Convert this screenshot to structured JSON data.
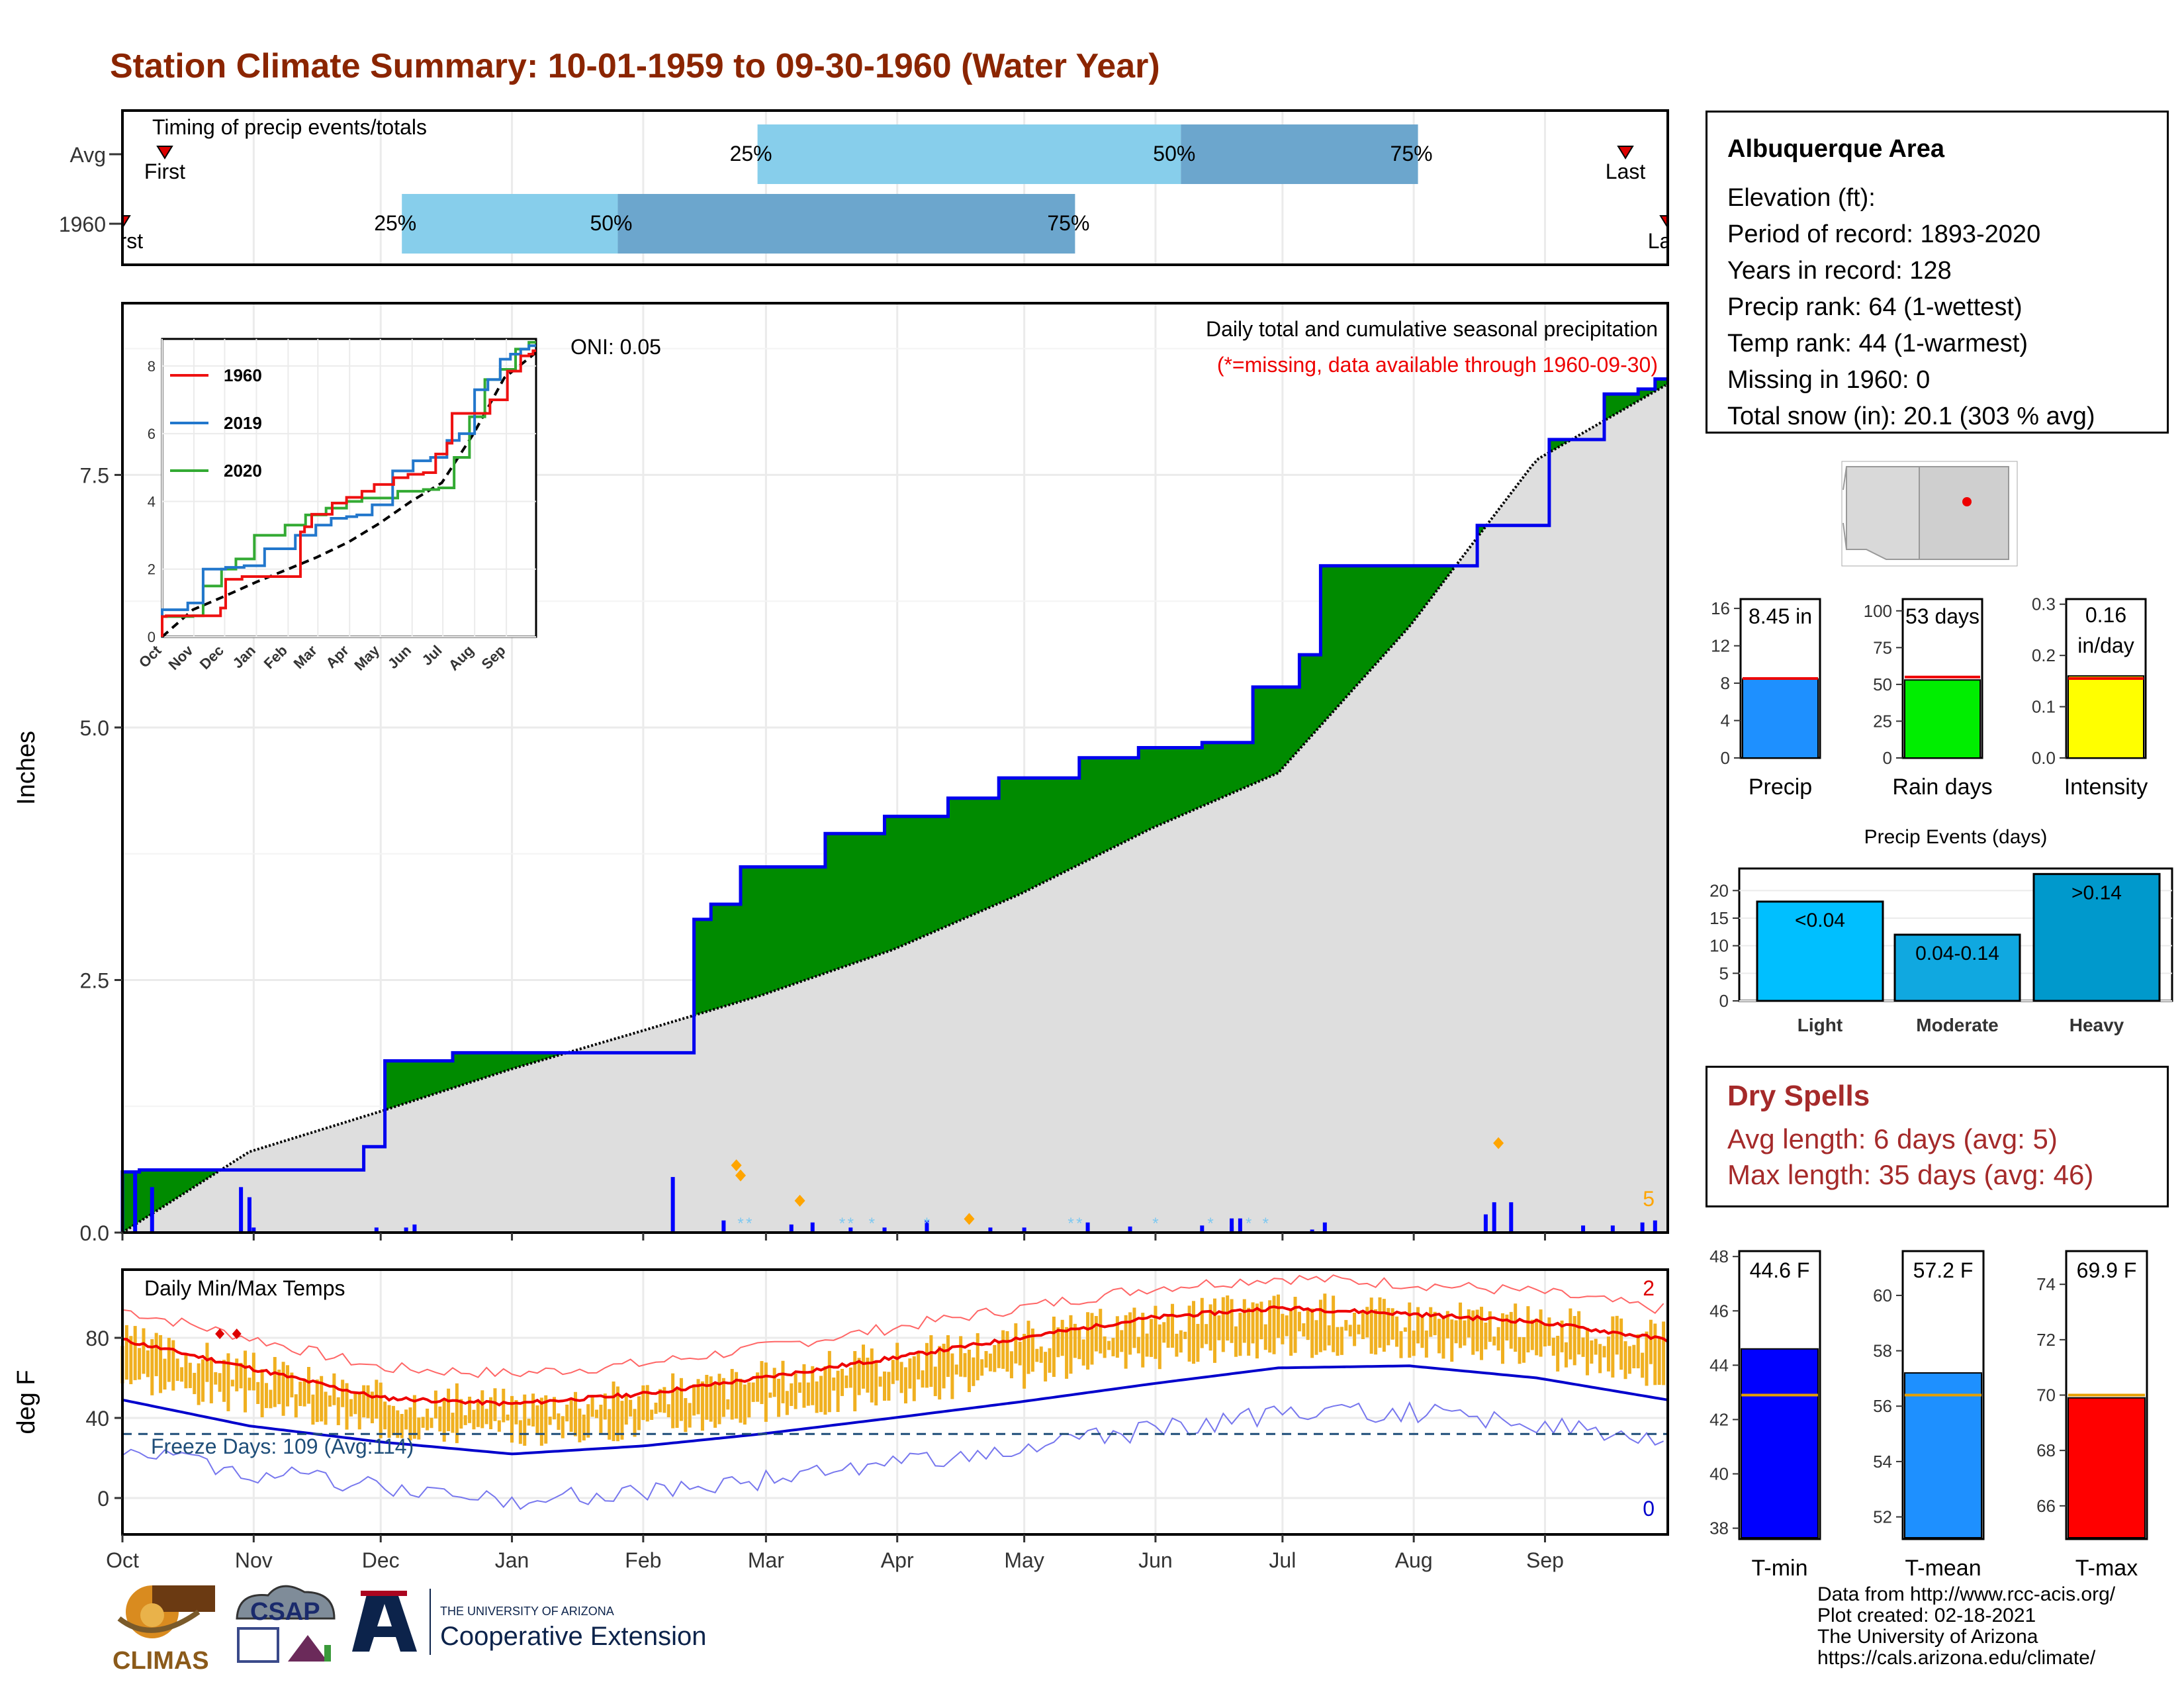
{
  "title": "Station Climate Summary: 10-01-1959 to 09-30-1960 (Water Year)",
  "timing": {
    "label": "Timing of precip events/totals",
    "rows": [
      {
        "name": "Avg",
        "first_day": 10,
        "q25": 150,
        "q50": 250,
        "q75": 306,
        "last_day": 355,
        "first_label": "First",
        "last_label": "Last"
      },
      {
        "name": "1960",
        "first_day": 0,
        "q25": 66,
        "q50": 117,
        "q75": 225,
        "last_day": 365,
        "first_label": "First",
        "last_label": "Last"
      }
    ],
    "pct_labels": [
      "25%",
      "50%",
      "75%"
    ]
  },
  "precip_panel": {
    "ylabel": "Inches",
    "yticks": [
      "0.0",
      "2.5",
      "5.0",
      "7.5"
    ],
    "ylim": [
      0,
      9.2
    ],
    "oni": "ONI: 0.05",
    "caption": "Daily total and cumulative seasonal precipitation",
    "missing_note": "(*=missing, data available through 1960-09-30)",
    "missing_count": "5"
  },
  "temp_panel": {
    "label": "Daily Min/Max Temps",
    "ylabel": "deg F",
    "yticks": [
      "0",
      "40",
      "80"
    ],
    "freeze": "Freeze Days: 109 (Avg:114)",
    "count_high": "2",
    "count_low": "0"
  },
  "months": [
    "Oct",
    "Nov",
    "Dec",
    "Jan",
    "Feb",
    "Mar",
    "Apr",
    "May",
    "Jun",
    "Jul",
    "Aug",
    "Sep"
  ],
  "inset": {
    "yticks": [
      "0",
      "2",
      "4",
      "6",
      "8"
    ],
    "months": [
      "Oct",
      "Nov",
      "Dec",
      "Jan",
      "Feb",
      "Mar",
      "Apr",
      "May",
      "Jun",
      "Jul",
      "Aug",
      "Sep"
    ],
    "legend": [
      "1960",
      "2019",
      "2020"
    ],
    "colors": [
      "#EE1111",
      "#2277CC",
      "#33AA33"
    ]
  },
  "info": {
    "name": "Albuquerque Area",
    "lines": [
      "Elevation (ft):",
      "Period of record: 1893-2020",
      "Years in record: 128",
      "Precip rank: 64 (1-wettest)",
      "Temp rank: 44 (1-warmest)",
      "Missing in 1960: 0",
      "Total snow (in): 20.1 (303 % avg)"
    ]
  },
  "summary_bars": [
    {
      "label": "Precip",
      "value_label": "8.45 in",
      "value": 8.45,
      "avg": 8.5,
      "ymax": 17,
      "ticks": [
        "0",
        "4",
        "8",
        "12",
        "16"
      ],
      "tickvals": [
        0,
        4,
        8,
        12,
        16
      ],
      "color": "#1E90FF"
    },
    {
      "label": "Rain days",
      "value_label": "53 days",
      "value": 53,
      "avg": 55,
      "ymax": 108,
      "ticks": [
        "0",
        "25",
        "50",
        "75",
        "100"
      ],
      "tickvals": [
        0,
        25,
        50,
        75,
        100
      ],
      "color": "#00EE00"
    },
    {
      "label": "Intensity",
      "value_label": "0.16 in/day",
      "value": 0.16,
      "avg": 0.155,
      "ymax": 0.31,
      "ticks": [
        "0.0",
        "0.1",
        "0.2",
        "0.3"
      ],
      "tickvals": [
        0,
        0.1,
        0.2,
        0.3
      ],
      "color": "#FFFF00"
    }
  ],
  "events": {
    "title": "Precip Events (days)",
    "categories": [
      "Light",
      "Moderate",
      "Heavy"
    ],
    "values": [
      18,
      12,
      23
    ],
    "labels": [
      "<0.04",
      "0.04-0.14",
      ">0.14"
    ],
    "colors": [
      "#00BFFF",
      "#10A8E0",
      "#0099CC"
    ],
    "ticks": [
      "0",
      "5",
      "10",
      "15",
      "20"
    ]
  },
  "dry_spells": {
    "title": "Dry Spells",
    "avg": "Avg length: 6 days (avg: 5)",
    "max": "Max length: 35 days (avg: 46)"
  },
  "temp_bars": [
    {
      "label": "T-min",
      "value_label": "44.6 F",
      "value": 44.6,
      "avg": 42.9,
      "ymin": 37.6,
      "ymax": 48.2,
      "ticks": [
        "38",
        "40",
        "42",
        "44",
        "46",
        "48"
      ],
      "tickvals": [
        38,
        40,
        42,
        44,
        46,
        48
      ],
      "color": "#0000FF"
    },
    {
      "label": "T-mean",
      "value_label": "57.2 F",
      "value": 57.2,
      "avg": 56.4,
      "ymin": 51.2,
      "ymax": 61.6,
      "ticks": [
        "52",
        "54",
        "56",
        "58",
        "60"
      ],
      "tickvals": [
        52,
        54,
        56,
        58,
        60
      ],
      "color": "#1E90FF"
    },
    {
      "label": "T-max",
      "value_label": "69.9 F",
      "value": 69.9,
      "avg": 70.0,
      "ymin": 64.8,
      "ymax": 75.2,
      "ticks": [
        "66",
        "68",
        "70",
        "72",
        "74"
      ],
      "tickvals": [
        66,
        68,
        70,
        72,
        74
      ],
      "color": "#FF0000"
    }
  ],
  "credits": [
    "Data from http://www.rcc-acis.org/",
    "Plot created: 02-18-2021",
    "The University of Arizona",
    "https://cals.arizona.edu/climate/"
  ],
  "logos": {
    "climas": "CLIMAS",
    "csap": "CSAP",
    "ua_small": "THE UNIVERSITY OF ARIZONA",
    "ua_big": "Cooperative Extension"
  },
  "chart_data": [
    {
      "type": "area",
      "title": "Daily total and cumulative seasonal precipitation",
      "ylabel": "Inches",
      "ylim": [
        0,
        9.2
      ],
      "x_months": [
        "Oct",
        "Nov",
        "Dec",
        "Jan",
        "Feb",
        "Mar",
        "Apr",
        "May",
        "Jun",
        "Jul",
        "Aug",
        "Sep"
      ],
      "series": [
        {
          "name": "1960",
          "step_days": [
            0,
            4,
            57,
            62,
            78,
            79,
            120,
            135,
            139,
            146,
            153,
            166,
            180,
            195,
            207,
            226,
            240,
            255,
            267,
            278,
            283,
            290,
            320,
            337,
            350,
            358,
            362
          ],
          "step_values": [
            0.6,
            0.62,
            0.85,
            1.7,
            1.78,
            1.78,
            1.78,
            3.1,
            3.25,
            3.62,
            3.62,
            3.95,
            4.12,
            4.3,
            4.5,
            4.7,
            4.8,
            4.85,
            5.4,
            5.72,
            6.6,
            6.6,
            7.0,
            7.85,
            8.3,
            8.35,
            8.45
          ]
        },
        {
          "name": "avg",
          "days": [
            0,
            30,
            61,
            92,
            123,
            151,
            182,
            212,
            243,
            273,
            304,
            334,
            365
          ],
          "values": [
            0,
            0.8,
            1.2,
            1.62,
            2.0,
            2.35,
            2.8,
            3.35,
            4.0,
            4.55,
            6.0,
            7.65,
            8.4
          ]
        }
      ],
      "daily_bars": {
        "days": [
          3,
          7,
          28,
          30,
          31,
          60,
          67,
          69,
          130,
          142,
          158,
          163,
          172,
          180,
          190,
          205,
          213,
          228,
          238,
          255,
          262,
          262,
          264,
          281,
          284,
          322,
          324,
          328,
          345,
          352,
          359,
          362
        ],
        "values": [
          0.6,
          0.45,
          0.45,
          0.35,
          0.05,
          0.05,
          0.05,
          0.08,
          0.55,
          0.12,
          0.08,
          0.1,
          0.05,
          0.05,
          0.12,
          0.05,
          0.05,
          0.1,
          0.06,
          0.07,
          0.06,
          0.14,
          0.14,
          0.03,
          0.1,
          0.18,
          0.3,
          0.3,
          0.07,
          0.07,
          0.1,
          0.12
        ]
      }
    },
    {
      "type": "line",
      "title": "Daily Min/Max Temps",
      "ylabel": "deg F",
      "yticks": [
        0,
        40,
        80
      ],
      "normal_max": {
        "days": [
          0,
          30,
          61,
          92,
          123,
          151,
          182,
          212,
          243,
          273,
          304,
          334,
          365
        ],
        "values": [
          79,
          65,
          50,
          47,
          52,
          60,
          70,
          80,
          90,
          95,
          92,
          88,
          79
        ]
      },
      "normal_min": {
        "days": [
          0,
          30,
          61,
          92,
          123,
          151,
          182,
          212,
          243,
          273,
          304,
          334,
          365
        ],
        "values": [
          49,
          36,
          28,
          22,
          26,
          32,
          40,
          48,
          57,
          65,
          66,
          60,
          49
        ]
      },
      "freeze_line": 32
    }
  ]
}
